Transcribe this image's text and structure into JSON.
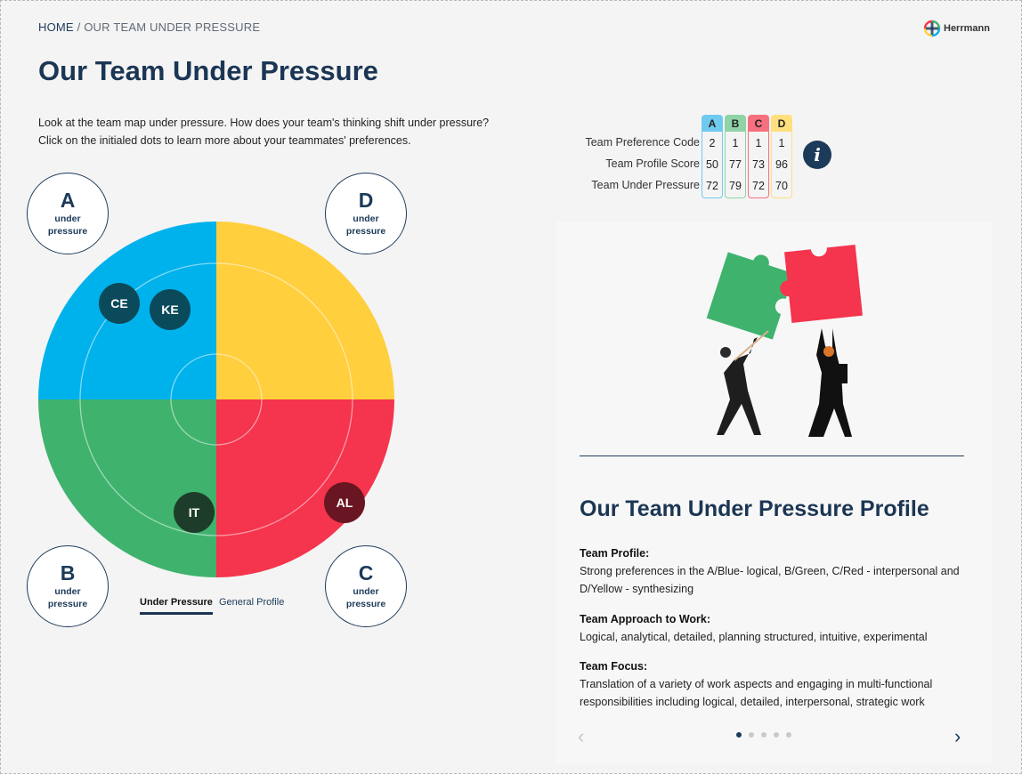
{
  "breadcrumb": {
    "home": "HOME",
    "separator": "/",
    "current": "OUR TEAM UNDER PRESSURE"
  },
  "brand": {
    "name": "Herrmann",
    "colors": {
      "blue": "#00b2ec",
      "yellow": "#ffcf3e",
      "green": "#3fb36e",
      "red": "#f5344d",
      "navy": "#1b3654"
    }
  },
  "page": {
    "title": "Our Team Under Pressure",
    "intro": "Look at the team map under pressure. How does your team's thinking shift under pressure? Click on the initialed dots to learn more about your teammates' preferences."
  },
  "quadrants": {
    "A": {
      "letter": "A",
      "label": "under pressure"
    },
    "B": {
      "letter": "B",
      "label": "under pressure"
    },
    "C": {
      "letter": "C",
      "label": "under pressure"
    },
    "D": {
      "letter": "D",
      "label": "under pressure"
    }
  },
  "teammates": [
    {
      "initials": "CE",
      "color": "#0b4a5a"
    },
    {
      "initials": "KE",
      "color": "#0b4a5a"
    },
    {
      "initials": "IT",
      "color": "#1d3d2a"
    },
    {
      "initials": "AL",
      "color": "#6a1622"
    }
  ],
  "view_toggle": {
    "active": "Under Pressure",
    "inactive": "General Profile"
  },
  "scores": {
    "columns": [
      "A",
      "B",
      "C",
      "D"
    ],
    "column_colors": [
      "#6fcaf0",
      "#8fd3a6",
      "#f7707f",
      "#ffdf7e"
    ],
    "rows": [
      {
        "label": "Team Preference Code",
        "values": [
          "2",
          "1",
          "1",
          "1"
        ]
      },
      {
        "label": "Team Profile Score",
        "values": [
          "50",
          "77",
          "73",
          "96"
        ]
      },
      {
        "label": "Team Under Pressure",
        "values": [
          "72",
          "79",
          "72",
          "70"
        ]
      }
    ],
    "info": "i"
  },
  "profile": {
    "title": "Our Team Under Pressure Profile",
    "sections": [
      {
        "heading": "Team Profile:",
        "text": "Strong preferences in the A/Blue- logical, B/Green, C/Red - interpersonal and D/Yellow - synthesizing"
      },
      {
        "heading": "Team Approach to Work:",
        "text": "Logical, analytical, detailed, planning structured, intuitive, experimental"
      },
      {
        "heading": "Team Focus:",
        "text": "Translation of a variety of work aspects and engaging in multi-functional responsibilities including logical, detailed, interpersonal, strategic work"
      }
    ],
    "pager": {
      "pages": 5,
      "current": 1,
      "prev": "‹",
      "next": "›"
    }
  }
}
